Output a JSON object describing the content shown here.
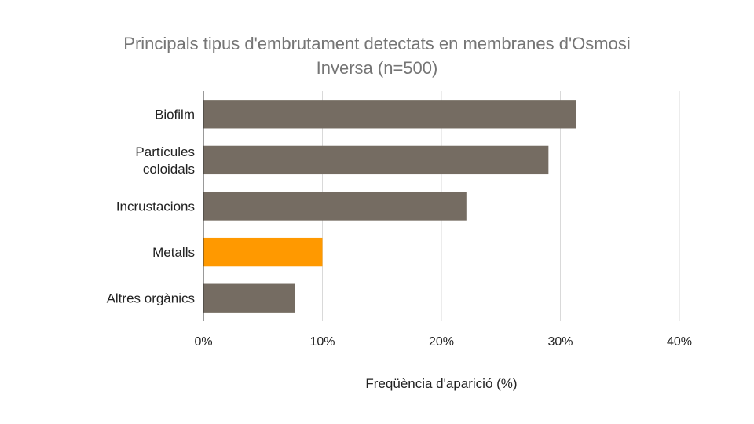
{
  "chart_data": {
    "type": "bar",
    "orientation": "horizontal",
    "title_lines": [
      "Principals tipus d'embrutament detectats en membranes d'Osmosi",
      "Inversa (n=500)"
    ],
    "categories": [
      [
        "Biofilm"
      ],
      [
        "Partícules",
        "coloidals"
      ],
      [
        "Incrustacions"
      ],
      [
        "Metalls"
      ],
      [
        "Altres orgànics"
      ]
    ],
    "values": [
      31.3,
      29.0,
      22.1,
      10.0,
      7.7
    ],
    "colors": [
      "#756c62",
      "#756c62",
      "#756c62",
      "#ff9900",
      "#756c62"
    ],
    "xlabel": "Freqüència d'aparició (%)",
    "ylabel": "",
    "xlim": [
      0,
      40
    ],
    "xticks": [
      0,
      10,
      20,
      30,
      40
    ],
    "xtick_labels": [
      "0%",
      "10%",
      "20%",
      "30%",
      "40%"
    ],
    "grid": true,
    "legend": "none"
  }
}
